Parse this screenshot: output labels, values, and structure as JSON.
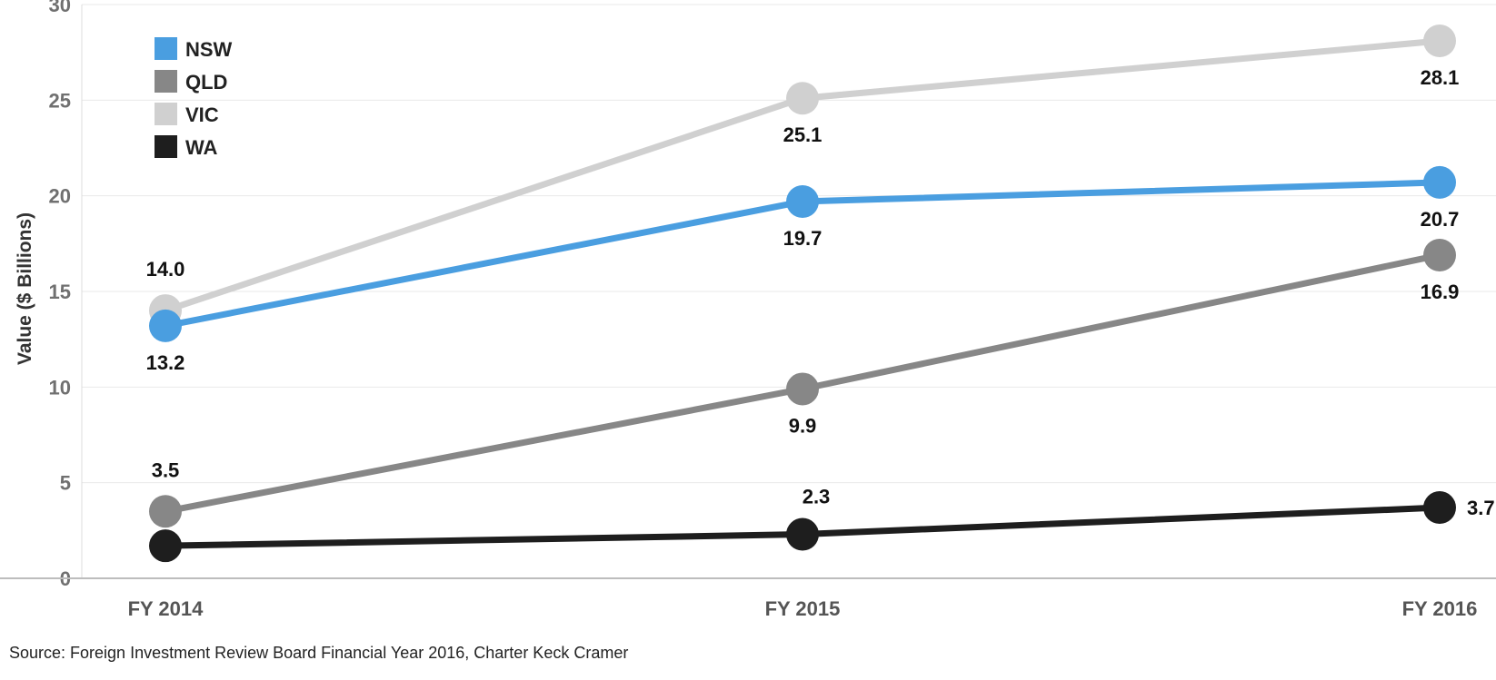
{
  "chart_data": {
    "type": "line",
    "categories": [
      "FY 2014",
      "FY 2015",
      "FY 2016"
    ],
    "ylabel": "Value ($ Billions)",
    "xlabel": "",
    "ylim": [
      0,
      30
    ],
    "yticks": [
      0,
      5,
      10,
      15,
      20,
      25,
      30
    ],
    "grid": true,
    "legend_position": "top-left",
    "series": [
      {
        "name": "NSW",
        "color": "#4a9ee0",
        "values": [
          13.2,
          19.7,
          20.7
        ],
        "labels": [
          "13.2",
          "19.7",
          "20.7"
        ]
      },
      {
        "name": "QLD",
        "color": "#878787",
        "values": [
          3.5,
          9.9,
          16.9
        ],
        "labels": [
          "3.5",
          "9.9",
          "16.9"
        ]
      },
      {
        "name": "VIC",
        "color": "#d0d0d0",
        "values": [
          14.0,
          25.1,
          28.1
        ],
        "labels": [
          "14.0",
          "25.1",
          "28.1"
        ]
      },
      {
        "name": "WA",
        "color": "#1e1e1e",
        "values": [
          1.7,
          2.3,
          3.7
        ],
        "labels": [
          "",
          "2.3",
          "3.7"
        ]
      }
    ]
  },
  "source_note": "Source: Foreign Investment Review Board Financial Year 2016, Charter Keck Cramer"
}
